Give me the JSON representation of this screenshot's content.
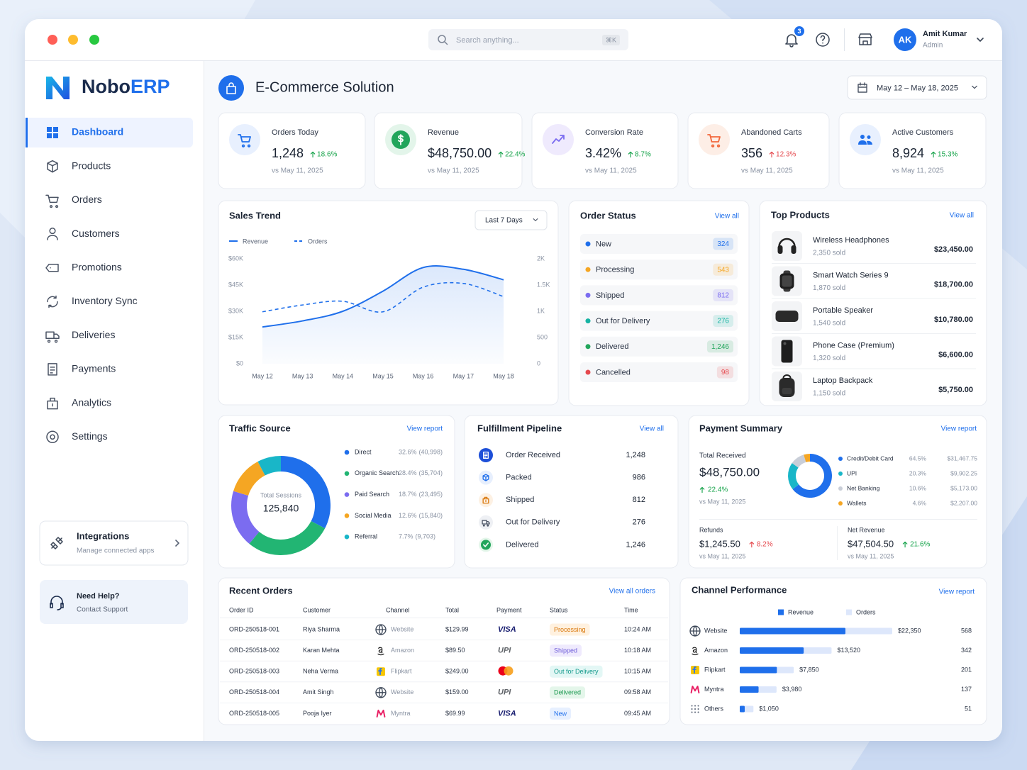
{
  "topbar": {
    "search": "Search anything...",
    "shortcut": "⌘K",
    "badge": "3",
    "user": {
      "initials": "AK",
      "name": "Amit Kumar",
      "role": "Admin"
    }
  },
  "sidebar": {
    "brand": [
      "Nobo",
      "ERP"
    ],
    "nav": [
      "Dashboard",
      "Products",
      "Orders",
      "Customers",
      "Promotions",
      "Inventory Sync",
      "Deliveries",
      "Payments",
      "Analytics",
      "Settings"
    ],
    "active": 0,
    "integrations": {
      "title": "Integrations",
      "subtitle": "Manage connected apps"
    },
    "help": {
      "title": "Need Help?",
      "subtitle": "Contact Support"
    }
  },
  "header": {
    "title": "E-Commerce Solution",
    "date_range": "May 12 – May 18, 2025"
  },
  "kpis": [
    {
      "label": "Orders Today",
      "value": "1,248",
      "change": "18.6%",
      "compare": "vs May 11, 2025",
      "color": "#16a34a"
    },
    {
      "label": "Revenue",
      "value": "$48,750.00",
      "change": "22.4%",
      "compare": "vs May 11, 2025",
      "color": "#16a34a"
    },
    {
      "label": "Conversion Rate",
      "value": "3.42%",
      "change": "8.7%",
      "compare": "vs May 11, 2025",
      "color": "#16a34a"
    },
    {
      "label": "Abandoned Carts",
      "value": "356",
      "change": "12.3%",
      "compare": "vs May 11, 2025",
      "color": "#e5484d"
    },
    {
      "label": "Active Customers",
      "value": "8,924",
      "change": "15.3%",
      "compare": "vs May 11, 2025",
      "color": "#16a34a"
    }
  ],
  "sales_trend": {
    "title": "Sales Trend",
    "period": "Last 7 Days",
    "chart_data": {
      "type": "line",
      "area": true,
      "categories": [
        "May 12",
        "May 13",
        "May 14",
        "May 15",
        "May 16",
        "May 17",
        "May 18"
      ],
      "series": [
        {
          "name": "Revenue",
          "color": "#1f6feb",
          "values": [
            21000,
            24500,
            30000,
            41500,
            55000,
            54000,
            48000
          ]
        },
        {
          "name": "Orders",
          "color": "#1f6feb",
          "dashed": true,
          "axis": "y2",
          "values": [
            990,
            1120,
            1190,
            990,
            1460,
            1530,
            1280
          ]
        }
      ],
      "ylim": [
        0,
        60000
      ],
      "yticks": [
        {
          "value": 0,
          "label": "$0"
        },
        {
          "value": 15000,
          "label": "$15K"
        },
        {
          "value": 30000,
          "label": "$30K"
        },
        {
          "value": 45000,
          "label": "$45K"
        },
        {
          "value": 60000,
          "label": "$60K"
        }
      ],
      "y2lim": [
        0,
        2000
      ],
      "y2ticks": [
        0,
        500,
        {
          "value": 1000,
          "label": "1K"
        },
        {
          "value": 1500,
          "label": "1.5K"
        },
        {
          "value": 2000,
          "label": "2K"
        }
      ]
    }
  },
  "order_status": {
    "title": "Order Status",
    "link": "View all",
    "items": [
      {
        "label": "New",
        "count": "324",
        "color": "#1f6feb"
      },
      {
        "label": "Processing",
        "count": "543",
        "color": "#f5a623"
      },
      {
        "label": "Shipped",
        "count": "812",
        "color": "#7b6cf0"
      },
      {
        "label": "Out for Delivery",
        "count": "276",
        "color": "#17b3a3"
      },
      {
        "label": "Delivered",
        "count": "1,246",
        "color": "#22a55b"
      },
      {
        "label": "Cancelled",
        "count": "98",
        "color": "#e5484d"
      }
    ]
  },
  "top_products": {
    "title": "Top Products",
    "link": "View all",
    "items": [
      {
        "name": "Wireless Headphones",
        "sold": "2,350 sold",
        "revenue": "$23,450.00"
      },
      {
        "name": "Smart Watch Series 9",
        "sold": "1,870 sold",
        "revenue": "$18,700.00"
      },
      {
        "name": "Portable Speaker",
        "sold": "1,540 sold",
        "revenue": "$10,780.00"
      },
      {
        "name": "Phone Case (Premium)",
        "sold": "1,320 sold",
        "revenue": "$6,600.00"
      },
      {
        "name": "Laptop Backpack",
        "sold": "1,150 sold",
        "revenue": "$5,750.00"
      }
    ]
  },
  "traffic_source": {
    "title": "Traffic Source",
    "link": "View report",
    "chart_data": {
      "type": "donut",
      "center_label": "Total Sessions",
      "center_value": "125,840",
      "categories": [
        "Direct",
        "Organic Search",
        "Paid Search",
        "Social Media",
        "Referral"
      ],
      "values": [
        32.6,
        28.4,
        18.7,
        12.6,
        7.7
      ],
      "value_labels": [
        "32.6%",
        "28.4%",
        "18.7%",
        "12.6%",
        "7.7%"
      ],
      "sessions": [
        "(40,998)",
        "(35,704)",
        "(23,495)",
        "(15,840)",
        "(9,703)"
      ],
      "colors": [
        "#1f6feb",
        "#22b573",
        "#7b6cf0",
        "#f5a623",
        "#19b6c8"
      ]
    }
  },
  "fulfillment": {
    "title": "Fulfillment Pipeline",
    "link": "View all",
    "steps": [
      {
        "label": "Order Received",
        "count": "1,248"
      },
      {
        "label": "Packed",
        "count": "986"
      },
      {
        "label": "Shipped",
        "count": "812"
      },
      {
        "label": "Out for Delivery",
        "count": "276"
      },
      {
        "label": "Delivered",
        "count": "1,246"
      }
    ]
  },
  "payment_summary": {
    "title": "Payment Summary",
    "link": "View report",
    "total": {
      "label": "Total Received",
      "value": "$48,750.00",
      "change": "22.4%",
      "compare": "vs May 11, 2025",
      "color": "#16a34a"
    },
    "chart_data": {
      "type": "donut",
      "categories": [
        "Credit/Debit Card",
        "UPI",
        "Net Banking",
        "Wallets"
      ],
      "values": [
        64.5,
        20.3,
        10.6,
        4.6
      ],
      "value_labels": [
        "64.5%",
        "20.3%",
        "10.6%",
        "4.6%"
      ],
      "amounts": [
        "$31,467.75",
        "$9,902.25",
        "$5,173.00",
        "$2,207.00"
      ],
      "colors": [
        "#1f6feb",
        "#19b6c8",
        "#c9ced8",
        "#f5a623"
      ]
    },
    "refunds": {
      "label": "Refunds",
      "value": "$1,245.50",
      "change": "8.2%",
      "compare": "vs May 11, 2025",
      "color": "#e5484d"
    },
    "net_revenue": {
      "label": "Net Revenue",
      "value": "$47,504.50",
      "change": "21.6%",
      "compare": "vs May 11, 2025",
      "color": "#16a34a"
    }
  },
  "recent_orders": {
    "title": "Recent Orders",
    "link": "View all orders",
    "columns": [
      "Order ID",
      "Customer",
      "Channel",
      "Total",
      "Payment",
      "Status",
      "Time"
    ],
    "rows": [
      [
        "ORD-250518-001",
        "Riya Sharma",
        "Website",
        "$129.99",
        "VISA",
        "Processing",
        "10:24 AM"
      ],
      [
        "ORD-250518-002",
        "Karan Mehta",
        "Amazon",
        "$89.50",
        "UPI",
        "Shipped",
        "10:18 AM"
      ],
      [
        "ORD-250518-003",
        "Neha Verma",
        "Flipkart",
        "$249.00",
        null,
        "Out for Delivery",
        "10:15 AM"
      ],
      [
        "ORD-250518-004",
        "Amit Singh",
        "Website",
        "$159.00",
        "UPI",
        "Delivered",
        "09:58 AM"
      ],
      [
        "ORD-250518-005",
        "Pooja Iyer",
        "Myntra",
        "$69.99",
        "VISA",
        "New",
        "09:45 AM"
      ]
    ],
    "payment_colors": [
      "#1a1f71",
      "#5f6368",
      null,
      "#5f6368",
      "#1a1f71"
    ],
    "status_colors": [
      [
        "#fff1df",
        "#d9770b"
      ],
      [
        "#efeafd",
        "#6d5bd8"
      ],
      [
        "#e3f7f5",
        "#12998b"
      ],
      [
        "#e4f6ea",
        "#1e9a52"
      ],
      [
        "#e7f0ff",
        "#1f6feb"
      ]
    ]
  },
  "channel_performance": {
    "title": "Channel Performance",
    "link": "View report",
    "chart_data": {
      "type": "bar",
      "orientation": "horizontal",
      "categories": [
        "Website",
        "Amazon",
        "Flipkart",
        "Myntra",
        "Others"
      ],
      "series": [
        {
          "name": "Revenue",
          "color": "#1f6feb",
          "values": [
            22350,
            13520,
            7850,
            3980,
            1050
          ],
          "value_labels": [
            "$22,350",
            "$13,520",
            "$7,850",
            "$3,980",
            "$1,050"
          ]
        },
        {
          "name": "Orders",
          "color": "#dde7fb",
          "values": [
            568,
            342,
            201,
            137,
            51
          ]
        }
      ]
    }
  }
}
